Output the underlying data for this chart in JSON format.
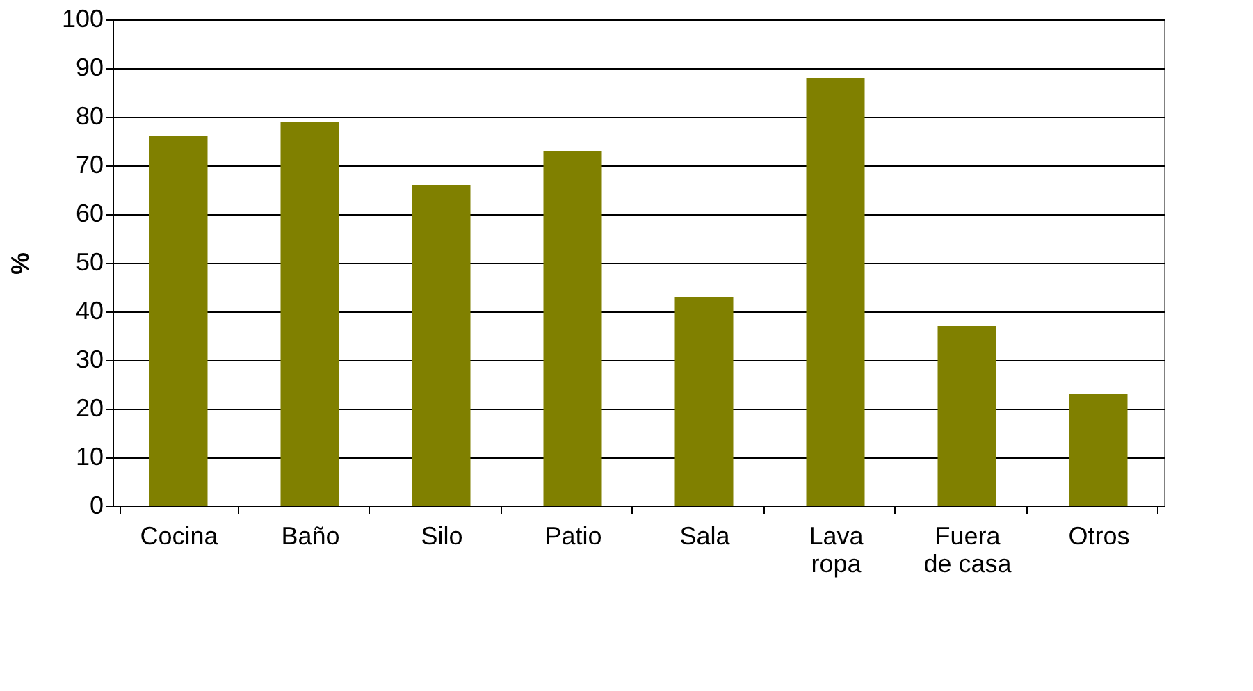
{
  "chart_data": {
    "type": "bar",
    "categories": [
      "Cocina",
      "Baño",
      "Silo",
      "Patio",
      "Sala",
      "Lava ropa",
      "Fuera de casa",
      "Otros"
    ],
    "values": [
      76,
      79,
      66,
      73,
      43,
      88,
      37,
      23
    ],
    "color": "#808000",
    "ylabel": "%",
    "ylim": [
      0,
      100
    ],
    "yticks": [
      0,
      10,
      20,
      30,
      40,
      50,
      60,
      70,
      80,
      90,
      100
    ],
    "grid": "y"
  }
}
